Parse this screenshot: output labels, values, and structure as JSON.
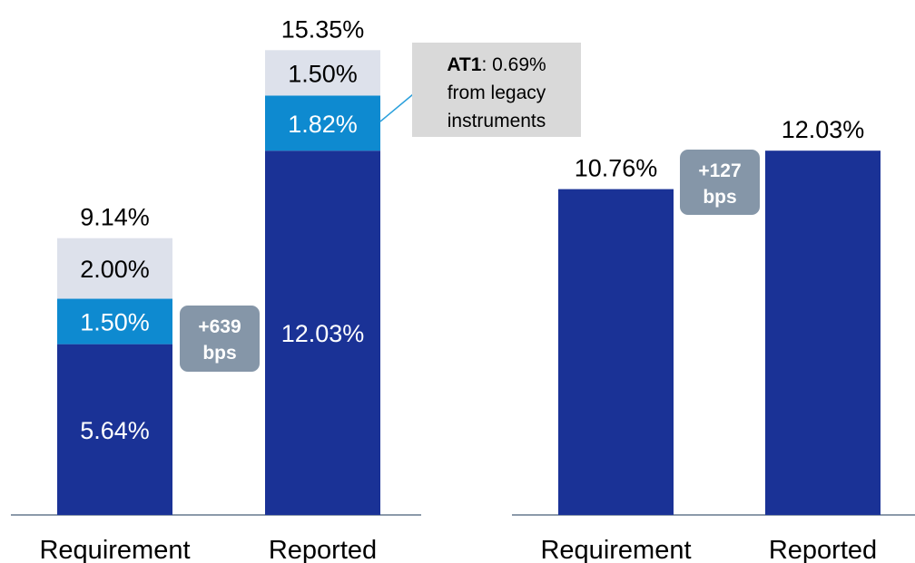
{
  "colors": {
    "dark_blue": "#1a3296",
    "mid_blue": "#0e8ad0",
    "light_gray": "#dde1eb",
    "badge_gray": "#8596a8",
    "callout_gray": "#d9d9d9",
    "axis": "#8c9aaa"
  },
  "chart_data": [
    {
      "type": "bar",
      "stacked": true,
      "categories": [
        "Requirement",
        "Reported"
      ],
      "ylim": [
        0,
        17
      ],
      "series": [
        {
          "values": [
            5.64,
            12.03
          ],
          "labels": [
            "5.64%",
            "12.03%"
          ]
        },
        {
          "values": [
            1.5,
            1.82
          ],
          "labels": [
            "1.50%",
            "1.82%"
          ]
        },
        {
          "values": [
            2.0,
            1.5
          ],
          "labels": [
            "2.00%",
            "1.50%"
          ]
        }
      ],
      "totals": [
        9.14,
        15.35
      ],
      "total_labels": [
        "9.14%",
        "15.35%"
      ],
      "badge": {
        "line1": "+639",
        "line2": "bps"
      },
      "callout": {
        "bold": "AT1",
        "line1_rest": ": 0.69%",
        "line2": "from legacy",
        "line3": "instruments"
      }
    },
    {
      "type": "bar",
      "stacked": false,
      "categories": [
        "Requirement",
        "Reported"
      ],
      "ylim": [
        0,
        17
      ],
      "series": [
        {
          "values": [
            10.76,
            12.03
          ],
          "labels": [
            "10.76%",
            "12.03%"
          ]
        }
      ],
      "badge": {
        "line1": "+127",
        "line2": "bps"
      }
    }
  ]
}
